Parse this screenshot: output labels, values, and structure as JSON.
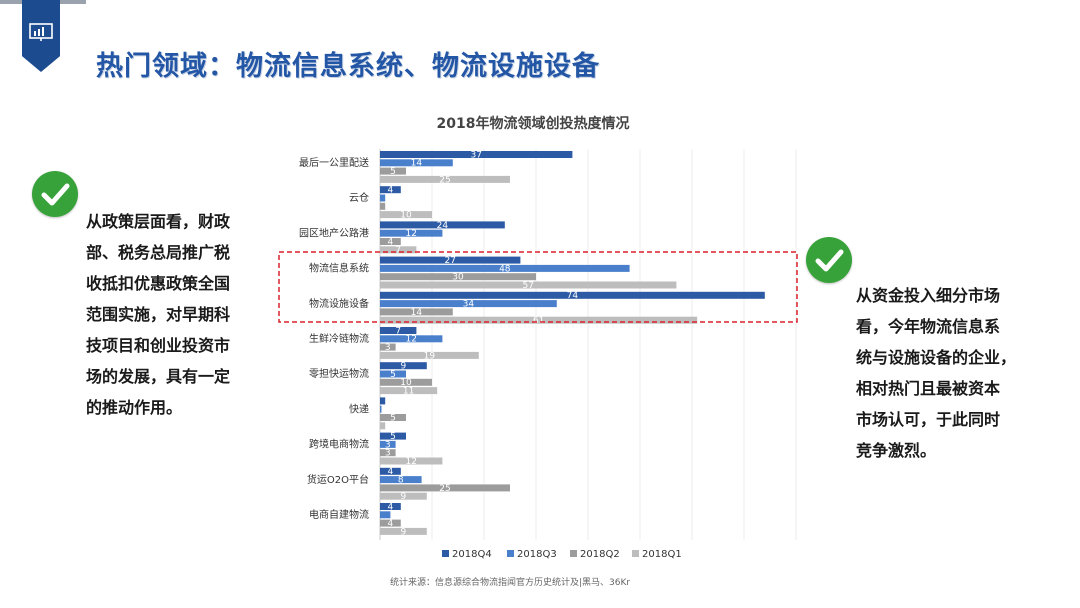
{
  "page": {
    "title": "热门领域：物流信息系统、物流设施设备",
    "left_text": "从政策层面看，财政\n部、税务总局推广税\n收抵扣优惠政策全国\n范围实施，对早期科\n技项目和创业投资市\n场的发展，具有一定\n的推动作用。",
    "right_text": "从资金投入细分市场\n看，今年物流信息系\n统与设施设备的企业，\n相对热门且最被资本\n市场认可，于此同时\n竞争激烈。"
  },
  "colors": {
    "brand": "#1d4b8f",
    "title": "#2456a6",
    "check": "#38a23a",
    "highlight_box": "#d9232d",
    "q4": "#2c5aa5",
    "q3": "#4a7fcc",
    "q2": "#9c9c9c",
    "q1": "#bdbdbd"
  },
  "icons": {
    "badge": "presentation-board-icon",
    "check": "check-circle-icon"
  },
  "chart_data": {
    "type": "bar",
    "orientation": "horizontal",
    "title": "2018年物流领域创投热度情况",
    "source": "统计来源：信息源综合物流指闻官方历史统计及|黑马、36Kr",
    "categories": [
      "最后一公里配送",
      "云仓",
      "园区地产公路港",
      "物流信息系统",
      "物流设施设备",
      "生鲜冷链物流",
      "零担快运物流",
      "快递",
      "跨境电商物流",
      "货运O2O平台",
      "电商自建物流"
    ],
    "series": [
      {
        "name": "2018Q4",
        "values": [
          37,
          4,
          24,
          27,
          74,
          7,
          9,
          1,
          5,
          4,
          4
        ]
      },
      {
        "name": "2018Q3",
        "values": [
          14,
          1,
          12,
          48,
          34,
          12,
          5,
          0,
          3,
          8,
          2
        ]
      },
      {
        "name": "2018Q2",
        "values": [
          5,
          1,
          4,
          30,
          14,
          3,
          10,
          5,
          3,
          25,
          4
        ]
      },
      {
        "name": "2018Q1",
        "values": [
          25,
          10,
          7,
          57,
          61,
          19,
          11,
          1,
          12,
          9,
          9
        ]
      }
    ],
    "highlighted_categories": [
      "物流信息系统",
      "物流设施设备"
    ],
    "xlim": [
      0,
      80
    ],
    "grid": "vertical",
    "legend": "bottom"
  }
}
